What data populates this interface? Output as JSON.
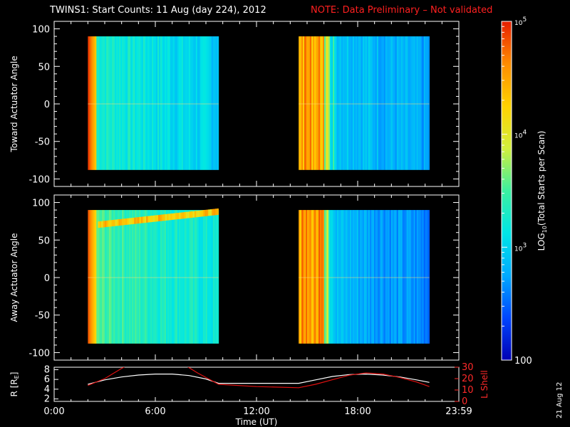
{
  "title": {
    "main": "TWINS1: Start Counts: 11 Aug (day 224), 2012",
    "note": "NOTE: Data Preliminary – Not validated"
  },
  "colors": {
    "background": "#000000",
    "note": "#ff2020",
    "lshell_line": "#e01010",
    "r_line": "#ffffff",
    "colormap": [
      "#0000b4",
      "#0046ff",
      "#00aaff",
      "#00e6e6",
      "#3cf0a0",
      "#d2f03c",
      "#ffd200",
      "#ff8c00",
      "#e61e00"
    ]
  },
  "colorbar": {
    "label_pre": "LOG",
    "label_sub": "10",
    "label_post": "(Total Starts per Scan)",
    "ticks": [
      {
        "value": 100,
        "label": "100"
      },
      {
        "value": 1000,
        "label_base": "10",
        "label_exp": "3"
      },
      {
        "value": 10000,
        "label_base": "10",
        "label_exp": "4"
      },
      {
        "value": 100000,
        "label_base": "10",
        "label_exp": "5"
      }
    ],
    "range": [
      100,
      100000
    ],
    "scale": "log"
  },
  "footer": {
    "xlabel": "Time (UT)",
    "date_stamp": "21 Aug 12"
  },
  "chart_data": [
    {
      "type": "heatmap",
      "panel": "toward",
      "ylabel": "Toward Actuator Angle",
      "ylim": [
        -110,
        110
      ],
      "yticks": [
        100,
        50,
        0,
        -50,
        -100
      ],
      "xlim_hours": [
        0,
        24
      ],
      "data_blocks": [
        {
          "t_start": "02:00",
          "t_end": "09:45",
          "angle_range": [
            -88,
            90
          ],
          "edge_log": 4.9,
          "body_log": 3.0
        },
        {
          "t_start": "14:30",
          "t_end": "22:15",
          "angle_range": [
            -88,
            90
          ],
          "edge_log": 4.8,
          "body_log": 2.5
        }
      ]
    },
    {
      "type": "heatmap",
      "panel": "away",
      "ylabel": "Away Actuator Angle",
      "ylim": [
        -110,
        110
      ],
      "yticks": [
        100,
        50,
        0,
        -50,
        -100
      ],
      "xlim_hours": [
        0,
        24
      ],
      "data_blocks": [
        {
          "t_start": "02:00",
          "t_end": "09:45",
          "angle_range": [
            -88,
            90
          ],
          "edge_log": 4.8,
          "body_log": 3.2
        },
        {
          "t_start": "14:30",
          "t_end": "22:15",
          "angle_range": [
            -88,
            90
          ],
          "edge_log": 4.8,
          "body_log": 2.4
        }
      ]
    },
    {
      "type": "line",
      "panel": "orbit",
      "ylabel_left_pre": "R [R",
      "ylabel_left_sub": "E",
      "ylabel_left_post": "]",
      "ylabel_right": "L Shell",
      "xticks": [
        "0:00",
        "6:00",
        "12:00",
        "18:00",
        "23:59"
      ],
      "ylim_left": [
        1.5,
        8.5
      ],
      "yticks_left": [
        2,
        4,
        6,
        8
      ],
      "ylim_right": [
        0,
        30
      ],
      "yticks_right": [
        0,
        10,
        20,
        30
      ],
      "series": [
        {
          "axis": "left",
          "x_hours": [
            2.0,
            3.0,
            4.0,
            5.0,
            6.0,
            7.0,
            8.0,
            9.0,
            9.75,
            14.5,
            15.5,
            16.5,
            17.5,
            18.5,
            19.5,
            20.5,
            21.5,
            22.25
          ],
          "values": [
            5.0,
            5.9,
            6.5,
            6.9,
            7.1,
            7.1,
            6.8,
            6.1,
            5.2,
            5.2,
            5.9,
            6.6,
            7.0,
            7.1,
            6.9,
            6.5,
            5.9,
            5.4
          ]
        },
        {
          "axis": "right",
          "x_hours": [
            2.0,
            3.0,
            4.0,
            4.2,
            7.9,
            8.5,
            9.75,
            12.0,
            14.5,
            15.5,
            16.5,
            17.5,
            18.5,
            19.5,
            20.5,
            21.5,
            22.25
          ],
          "values": [
            14,
            20,
            29,
            30.5,
            30.5,
            25,
            15,
            13,
            12,
            15,
            19,
            23,
            25,
            24,
            21,
            17,
            13
          ]
        }
      ]
    }
  ]
}
